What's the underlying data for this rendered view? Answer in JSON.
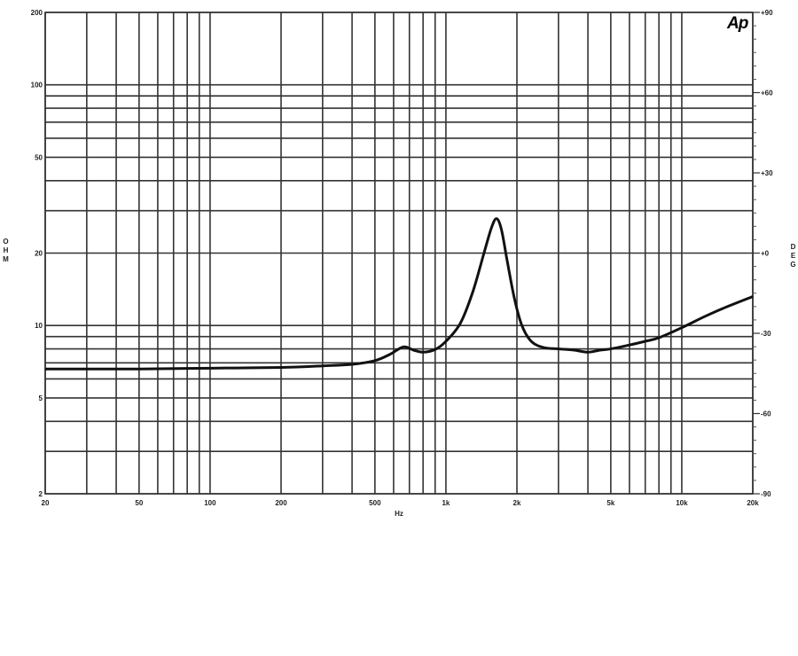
{
  "chart_data": {
    "type": "line",
    "title": "",
    "xlabel": "Hz",
    "ylabel": "OHM",
    "y2label": "DEG",
    "xscale": "log",
    "yscale": "log",
    "xlim": [
      20,
      20000
    ],
    "ylim": [
      2,
      200
    ],
    "y2lim": [
      -90,
      90
    ],
    "grid": true,
    "logo": "Ap",
    "x_ticks": [
      {
        "v": 20,
        "label": "20"
      },
      {
        "v": 50,
        "label": "50"
      },
      {
        "v": 100,
        "label": "100"
      },
      {
        "v": 200,
        "label": "200"
      },
      {
        "v": 500,
        "label": "500"
      },
      {
        "v": 1000,
        "label": "1k"
      },
      {
        "v": 2000,
        "label": "2k"
      },
      {
        "v": 5000,
        "label": "5k"
      },
      {
        "v": 10000,
        "label": "10k"
      },
      {
        "v": 20000,
        "label": "20k"
      }
    ],
    "x_gridlines": [
      20,
      30,
      40,
      50,
      60,
      70,
      80,
      90,
      100,
      200,
      300,
      400,
      500,
      600,
      700,
      800,
      900,
      1000,
      2000,
      3000,
      4000,
      5000,
      6000,
      7000,
      8000,
      9000,
      10000,
      20000
    ],
    "y_ticks": [
      {
        "v": 200,
        "label": "200"
      },
      {
        "v": 100,
        "label": "100"
      },
      {
        "v": 50,
        "label": "50"
      },
      {
        "v": 20,
        "label": "20"
      },
      {
        "v": 10,
        "label": "10"
      },
      {
        "v": 5,
        "label": "5"
      },
      {
        "v": 2,
        "label": "2"
      }
    ],
    "y_gridlines": [
      200,
      100,
      90,
      80,
      70,
      60,
      50,
      40,
      30,
      20,
      10,
      9,
      8,
      7,
      6,
      5,
      4,
      3,
      2
    ],
    "y2_ticks": [
      {
        "v": 90,
        "label": "+90"
      },
      {
        "v": 60,
        "label": "+60"
      },
      {
        "v": 30,
        "label": "+30"
      },
      {
        "v": 0,
        "label": "+0"
      },
      {
        "v": -30,
        "label": "-30"
      },
      {
        "v": -60,
        "label": "-60"
      },
      {
        "v": -90,
        "label": "-90"
      }
    ],
    "series": [
      {
        "color": "#111111",
        "x": [
          20,
          30,
          50,
          100,
          200,
          300,
          400,
          500,
          580,
          660,
          730,
          800,
          900,
          1000,
          1150,
          1300,
          1450,
          1560,
          1640,
          1720,
          1820,
          1950,
          2100,
          2300,
          2600,
          3000,
          3500,
          4000,
          4500,
          5000,
          6000,
          7000,
          8000,
          10000,
          12500,
          15000,
          20000
        ],
        "y": [
          6.6,
          6.6,
          6.6,
          6.65,
          6.7,
          6.8,
          6.9,
          7.15,
          7.6,
          8.15,
          7.9,
          7.75,
          7.95,
          8.6,
          10.2,
          13.8,
          20.0,
          25.5,
          27.8,
          25.0,
          18.5,
          13.0,
          10.0,
          8.6,
          8.1,
          8.0,
          7.9,
          7.75,
          7.9,
          8.0,
          8.3,
          8.6,
          8.9,
          9.8,
          10.9,
          11.8,
          13.2
        ]
      }
    ]
  }
}
